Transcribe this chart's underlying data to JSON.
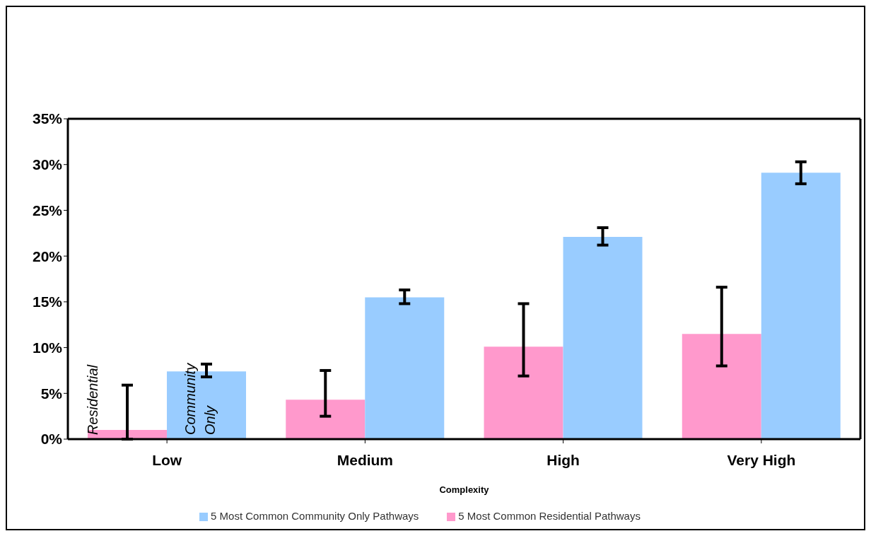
{
  "chart_data": {
    "type": "bar",
    "xlabel": "Complexity",
    "categories": [
      "Low",
      "Medium",
      "High",
      "Very High"
    ],
    "series": [
      {
        "name": "5 Most Common Residential Pathways",
        "color": "#ff99cc",
        "values": [
          1.0,
          4.3,
          10.1,
          11.5
        ],
        "errors": [
          [
            0,
            5.9
          ],
          [
            2.5,
            7.5
          ],
          [
            6.9,
            14.8
          ],
          [
            8.0,
            16.6
          ]
        ]
      },
      {
        "name": "5 Most Common Community Only Pathways",
        "color": "#99ccff",
        "values": [
          7.4,
          15.5,
          22.1,
          29.1
        ],
        "errors": [
          [
            6.8,
            8.2
          ],
          [
            14.8,
            16.3
          ],
          [
            21.2,
            23.1
          ],
          [
            27.9,
            30.3
          ]
        ]
      }
    ],
    "ylim": [
      0,
      35
    ],
    "yticks": [
      {
        "value": 0,
        "label": "0%"
      },
      {
        "value": 5,
        "label": "5%"
      },
      {
        "value": 10,
        "label": "10%"
      },
      {
        "value": 15,
        "label": "15%"
      },
      {
        "value": 20,
        "label": "20%"
      },
      {
        "value": 25,
        "label": "25%"
      },
      {
        "value": 30,
        "label": "30%"
      },
      {
        "value": 35,
        "label": "35%"
      }
    ],
    "annotations": [
      "Residential",
      "Community Only"
    ],
    "grid": false,
    "legend": "bottom"
  }
}
